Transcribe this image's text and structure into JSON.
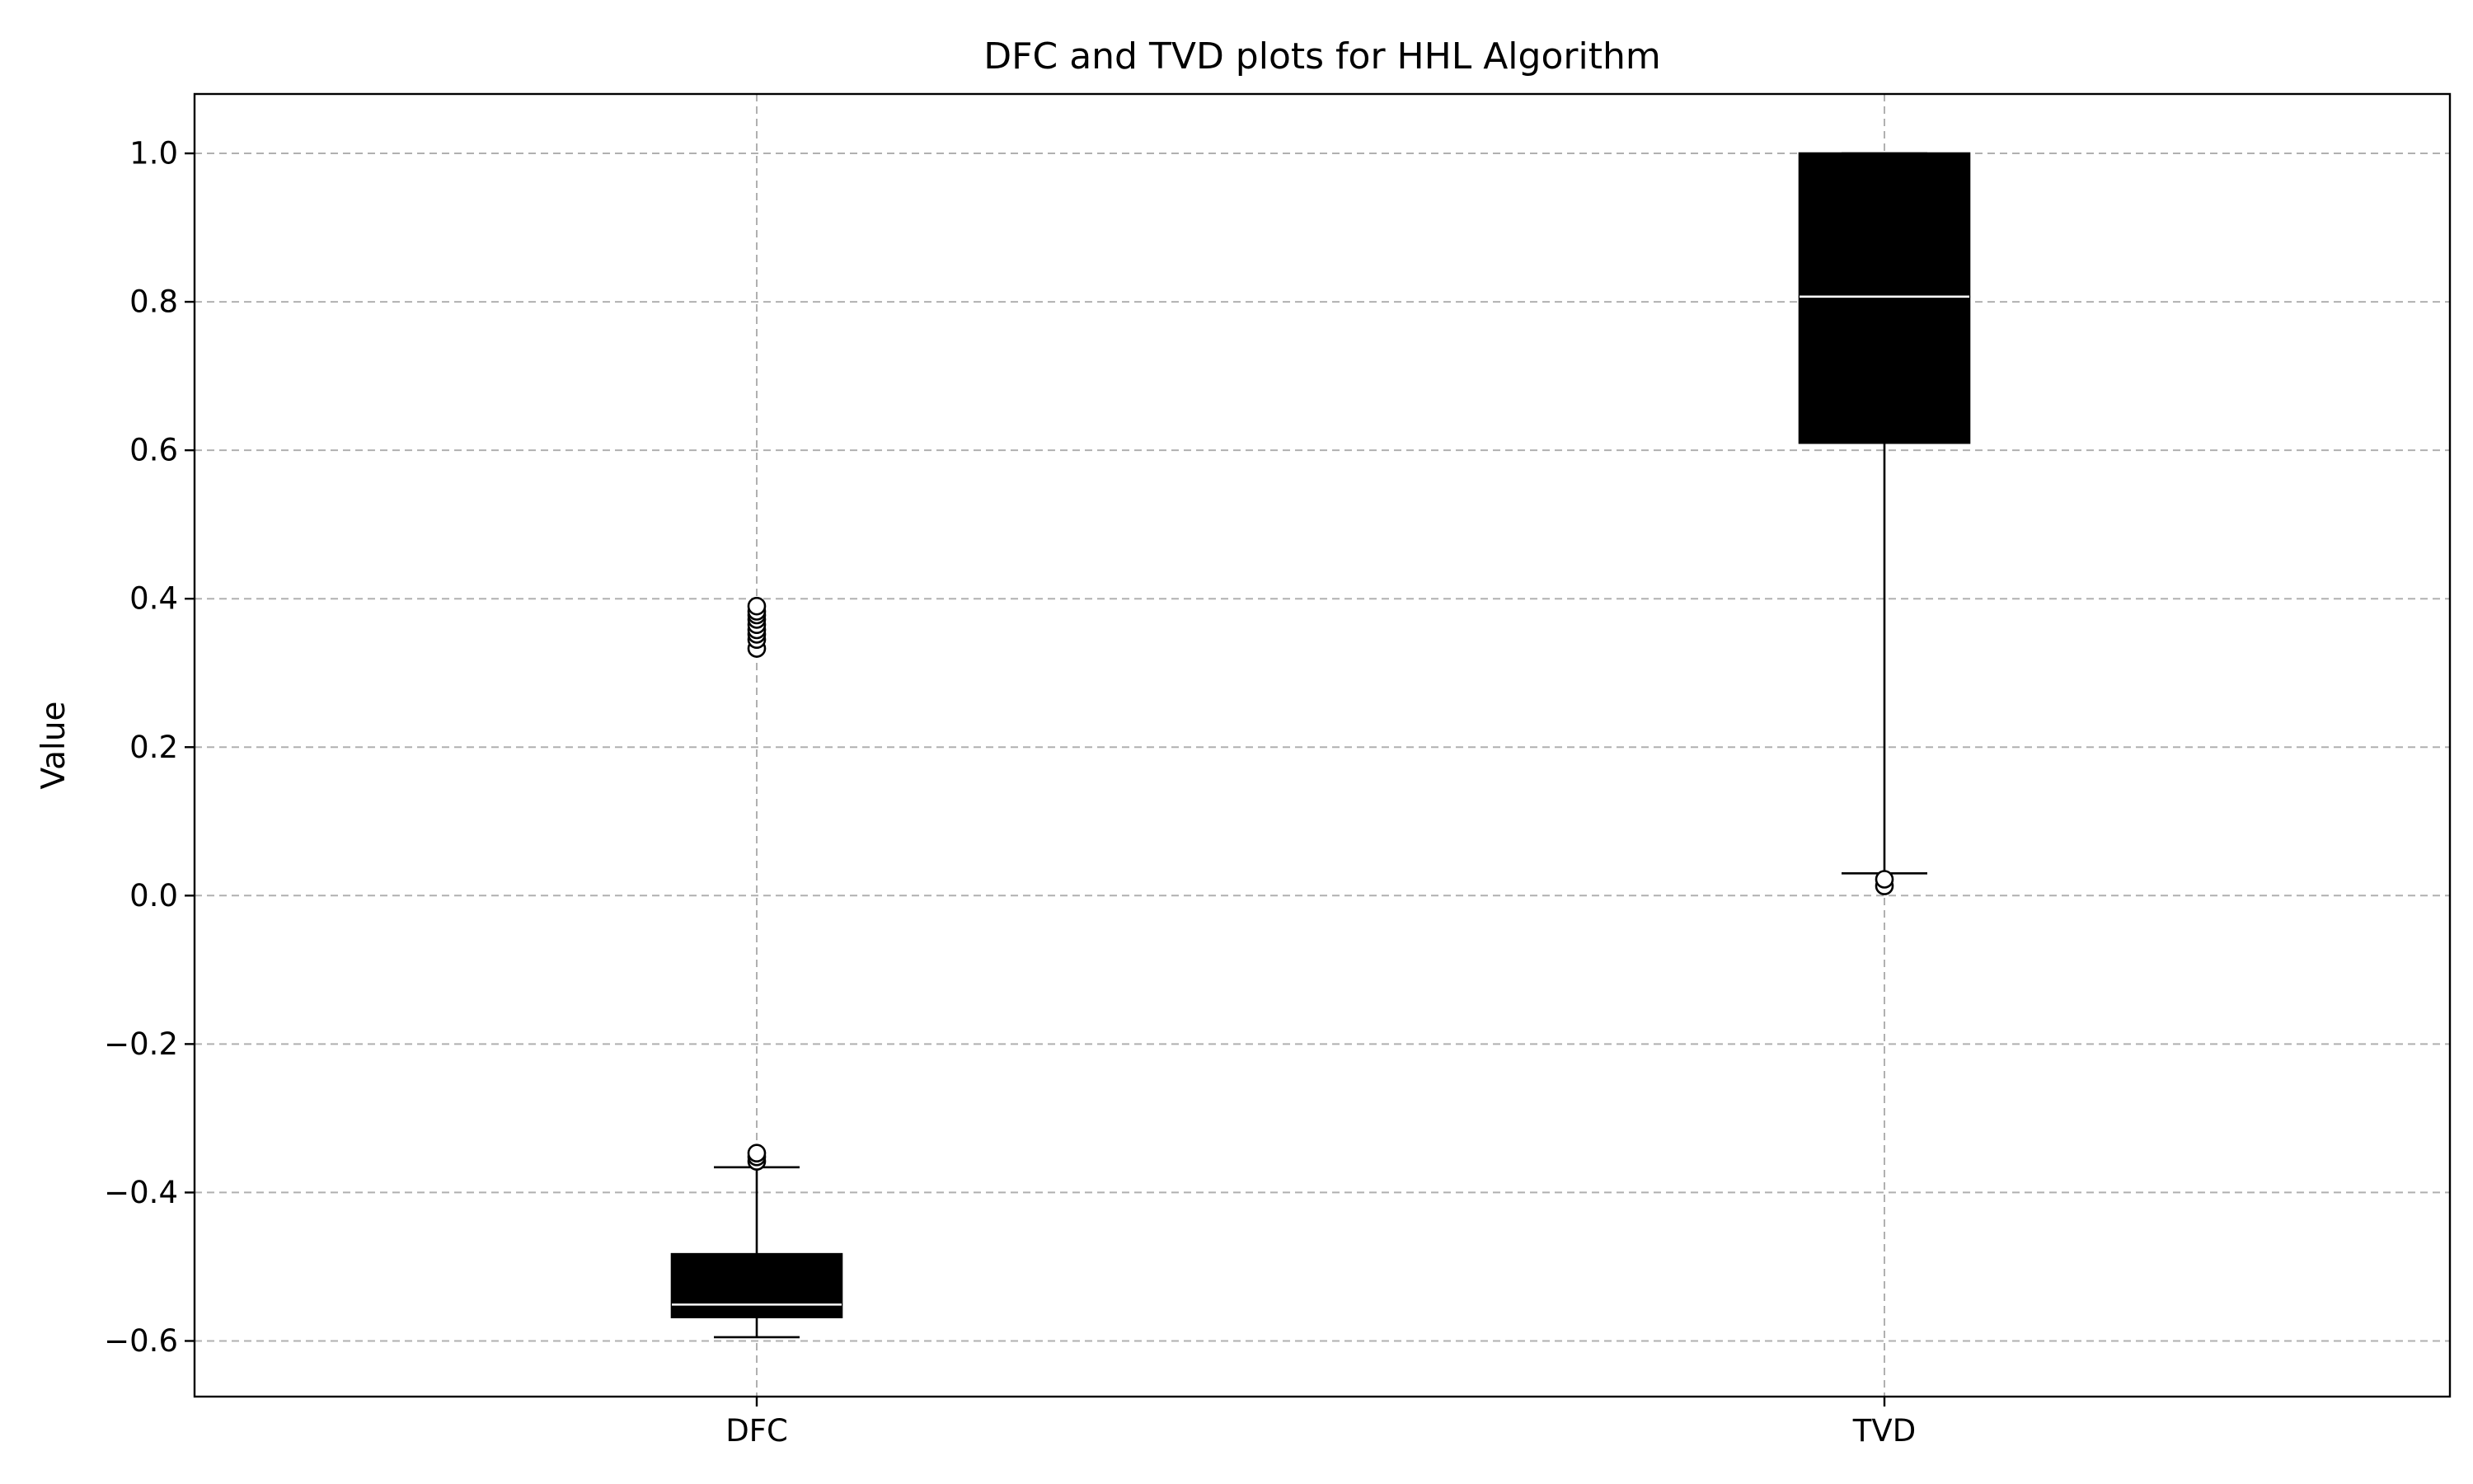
{
  "chart_data": {
    "type": "box",
    "title": "DFC and TVD plots for HHL Algorithm",
    "xlabel": "",
    "ylabel": "Value",
    "categories": [
      "DFC",
      "TVD"
    ],
    "ylim": [
      -0.675,
      1.08
    ],
    "yticks": [
      -0.6,
      -0.4,
      -0.2,
      0.0,
      0.2,
      0.4,
      0.6,
      0.8,
      1.0
    ],
    "ytick_labels": [
      "−0.6",
      "−0.4",
      "−0.2",
      "0.0",
      "0.2",
      "0.4",
      "0.6",
      "0.8",
      "1.0"
    ],
    "grid": true,
    "box_color": "#000000",
    "median_color": "#ffffff",
    "grid_color": "#b0b0b0",
    "boxes": [
      {
        "label": "DFC",
        "whisker_low": -0.595,
        "q1": -0.568,
        "median": -0.551,
        "q3": -0.483,
        "whisker_high": -0.366,
        "outliers": [
          -0.358,
          -0.352,
          -0.347,
          0.333,
          0.345,
          0.352,
          0.358,
          0.365,
          0.372,
          0.378,
          0.383,
          0.39
        ]
      },
      {
        "label": "TVD",
        "whisker_low": 0.03,
        "q1": 0.61,
        "median": 0.807,
        "q3": 1.0,
        "whisker_high": 1.0,
        "outliers": [
          0.013,
          0.022
        ]
      }
    ]
  }
}
